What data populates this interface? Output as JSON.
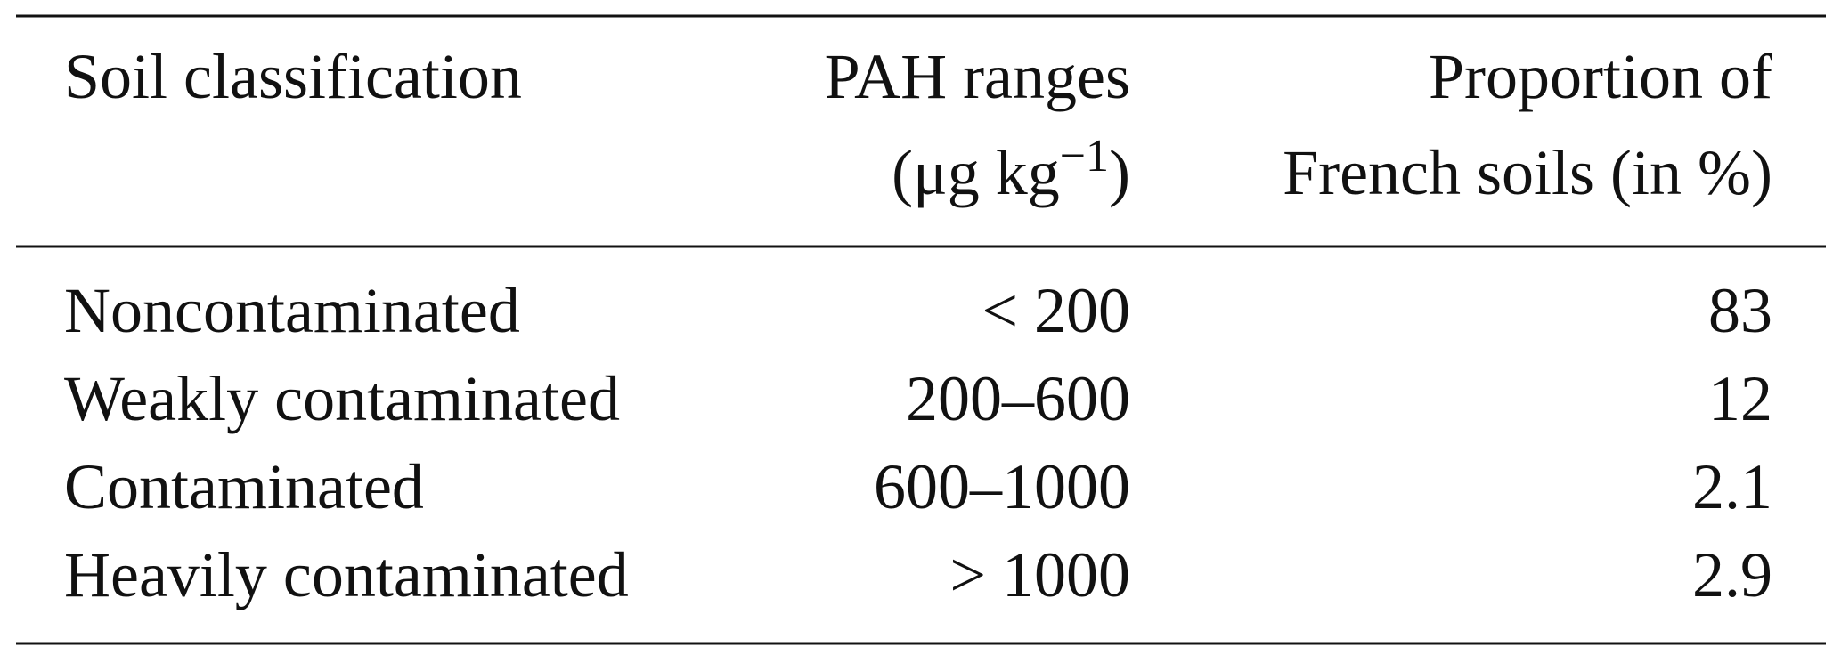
{
  "table": {
    "header": [
      [
        "Soil classification",
        "PAH ranges",
        "Proportion of"
      ],
      [
        null,
        [
          "(μg kg",
          "−1",
          ")"
        ],
        "French soils (in %)"
      ]
    ],
    "rows": [
      [
        "Noncontaminated",
        "< 200",
        "83"
      ],
      [
        "Weakly contaminated",
        "200–600",
        "12"
      ],
      [
        "Contaminated",
        "600–1000",
        "2.1"
      ],
      [
        "Heavily contaminated",
        "> 1000",
        "2.9"
      ]
    ]
  }
}
